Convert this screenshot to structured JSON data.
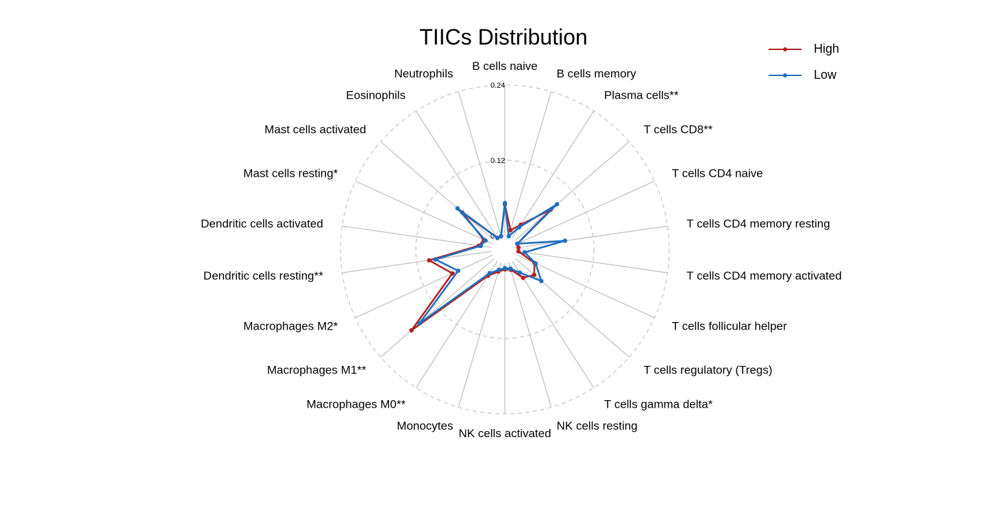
{
  "chart_data": {
    "type": "radar",
    "title": "TIICs Distribution",
    "categories": [
      "B cells naive",
      "B cells memory",
      "Plasma cells**",
      "T cells CD8**",
      "T cells CD4 naive",
      "T cells CD4 memory resting",
      "T cells CD4 memory activated",
      "T cells follicular helper",
      "T cells regulatory (Tregs)",
      "T cells gamma delta*",
      "NK cells resting",
      "NK cells activated",
      "Monocytes",
      "Macrophages M0**",
      "Macrophages M1**",
      "Macrophages M2*",
      "Dendritic cells resting**",
      "Dendritic cells activated",
      "Mast cells resting*",
      "Mast cells activated",
      "Eosinophils",
      "Neutrophils"
    ],
    "radial_ticks": [
      "0",
      "0.12",
      "0.24"
    ],
    "rlim": [
      0,
      0.24
    ],
    "grid": true,
    "legend_position": "top-right",
    "series": [
      {
        "name": "High",
        "color": "#b22222",
        "values": [
          0.05,
          0.01,
          0.025,
          0.075,
          0.0,
          0.0,
          0.0,
          0.03,
          0.04,
          0.032,
          0.012,
          0.01,
          0.015,
          0.028,
          0.175,
          0.07,
          0.1,
          0.02,
          0.015,
          0.068,
          0.0,
          0.0
        ]
      },
      {
        "name": "Low",
        "color": "#1f6fbf",
        "values": [
          0.052,
          0.0,
          0.02,
          0.088,
          0.0,
          0.075,
          0.01,
          0.032,
          0.055,
          0.022,
          0.01,
          0.008,
          0.012,
          0.023,
          0.158,
          0.06,
          0.09,
          0.017,
          0.012,
          0.078,
          0.0,
          0.0
        ]
      }
    ]
  }
}
